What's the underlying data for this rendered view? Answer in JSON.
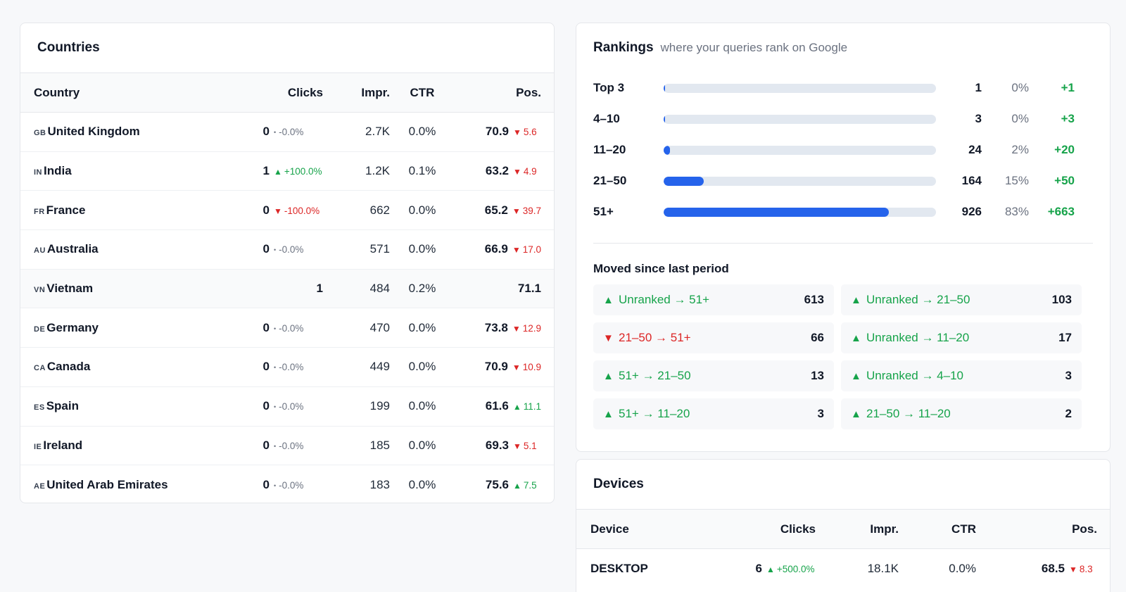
{
  "countries": {
    "title": "Countries",
    "columns": {
      "country": "Country",
      "clicks": "Clicks",
      "impr": "Impr.",
      "ctr": "CTR",
      "pos": "Pos."
    },
    "rows": [
      {
        "code": "GB",
        "name": "United Kingdom",
        "clicks": "0",
        "clicks_delta": "-0.0%",
        "clicks_dir": "flat",
        "impr": "2.7K",
        "ctr": "0.0%",
        "pos": "70.9",
        "pos_delta": "5.6",
        "pos_dir": "down"
      },
      {
        "code": "IN",
        "name": "India",
        "clicks": "1",
        "clicks_delta": "+100.0%",
        "clicks_dir": "up",
        "impr": "1.2K",
        "ctr": "0.1%",
        "pos": "63.2",
        "pos_delta": "4.9",
        "pos_dir": "down"
      },
      {
        "code": "FR",
        "name": "France",
        "clicks": "0",
        "clicks_delta": "-100.0%",
        "clicks_dir": "down",
        "impr": "662",
        "ctr": "0.0%",
        "pos": "65.2",
        "pos_delta": "39.7",
        "pos_dir": "down"
      },
      {
        "code": "AU",
        "name": "Australia",
        "clicks": "0",
        "clicks_delta": "-0.0%",
        "clicks_dir": "flat",
        "impr": "571",
        "ctr": "0.0%",
        "pos": "66.9",
        "pos_delta": "17.0",
        "pos_dir": "down"
      },
      {
        "code": "VN",
        "name": "Vietnam",
        "clicks": "1",
        "clicks_delta": "",
        "clicks_dir": "none",
        "impr": "484",
        "ctr": "0.2%",
        "pos": "71.1",
        "pos_delta": "",
        "pos_dir": "none"
      },
      {
        "code": "DE",
        "name": "Germany",
        "clicks": "0",
        "clicks_delta": "-0.0%",
        "clicks_dir": "flat",
        "impr": "470",
        "ctr": "0.0%",
        "pos": "73.8",
        "pos_delta": "12.9",
        "pos_dir": "down"
      },
      {
        "code": "CA",
        "name": "Canada",
        "clicks": "0",
        "clicks_delta": "-0.0%",
        "clicks_dir": "flat",
        "impr": "449",
        "ctr": "0.0%",
        "pos": "70.9",
        "pos_delta": "10.9",
        "pos_dir": "down"
      },
      {
        "code": "ES",
        "name": "Spain",
        "clicks": "0",
        "clicks_delta": "-0.0%",
        "clicks_dir": "flat",
        "impr": "199",
        "ctr": "0.0%",
        "pos": "61.6",
        "pos_delta": "11.1",
        "pos_dir": "up"
      },
      {
        "code": "IE",
        "name": "Ireland",
        "clicks": "0",
        "clicks_delta": "-0.0%",
        "clicks_dir": "flat",
        "impr": "185",
        "ctr": "0.0%",
        "pos": "69.3",
        "pos_delta": "5.1",
        "pos_dir": "down"
      },
      {
        "code": "AE",
        "name": "United Arab Emirates",
        "clicks": "0",
        "clicks_delta": "-0.0%",
        "clicks_dir": "flat",
        "impr": "183",
        "ctr": "0.0%",
        "pos": "75.6",
        "pos_delta": "7.5",
        "pos_dir": "up"
      }
    ]
  },
  "rankings": {
    "title": "Rankings",
    "subtitle": "where your queries rank on Google",
    "buckets": [
      {
        "label": "Top 3",
        "count": "1",
        "share": 0.001,
        "pct": "0%",
        "change": "+1"
      },
      {
        "label": "4–10",
        "count": "3",
        "share": 0.003,
        "pct": "0%",
        "change": "+3"
      },
      {
        "label": "11–20",
        "count": "24",
        "share": 0.022,
        "pct": "2%",
        "change": "+20"
      },
      {
        "label": "21–50",
        "count": "164",
        "share": 0.147,
        "pct": "15%",
        "change": "+50"
      },
      {
        "label": "51+",
        "count": "926",
        "share": 0.828,
        "pct": "83%",
        "change": "+663"
      }
    ],
    "moved_title": "Moved since last period",
    "moved": [
      {
        "label": "Unranked → 51+",
        "count": "613",
        "dir": "up"
      },
      {
        "label": "Unranked → 21–50",
        "count": "103",
        "dir": "up"
      },
      {
        "label": "21–50 → 51+",
        "count": "66",
        "dir": "down"
      },
      {
        "label": "Unranked → 11–20",
        "count": "17",
        "dir": "up"
      },
      {
        "label": "51+ → 21–50",
        "count": "13",
        "dir": "up"
      },
      {
        "label": "Unranked → 4–10",
        "count": "3",
        "dir": "up"
      },
      {
        "label": "51+ → 11–20",
        "count": "3",
        "dir": "up"
      },
      {
        "label": "21–50 → 11–20",
        "count": "2",
        "dir": "up"
      }
    ]
  },
  "devices": {
    "title": "Devices",
    "columns": {
      "device": "Device",
      "clicks": "Clicks",
      "impr": "Impr.",
      "ctr": "CTR",
      "pos": "Pos."
    },
    "rows": [
      {
        "name": "DESKTOP",
        "clicks": "6",
        "clicks_delta": "+500.0%",
        "clicks_dir": "up",
        "impr": "18.1K",
        "ctr": "0.0%",
        "pos": "68.5",
        "pos_delta": "8.3",
        "pos_dir": "down"
      }
    ]
  },
  "colors": {
    "up": "#16a34a",
    "down": "#dc2626",
    "bar": "#2563eb",
    "track": "#e2e8f0"
  }
}
